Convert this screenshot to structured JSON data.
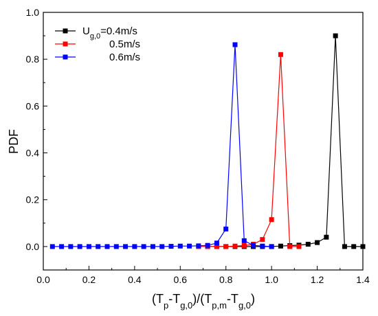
{
  "chart_data": {
    "type": "line",
    "title": "",
    "ylabel": "PDF",
    "xlabel": {
      "parts": [
        {
          "t": "(T"
        },
        {
          "t": "p",
          "sub": true
        },
        {
          "t": "-T"
        },
        {
          "t": "g,0",
          "sub": true
        },
        {
          "t": ")/(T"
        },
        {
          "t": "p,m",
          "sub": true
        },
        {
          "t": "-T"
        },
        {
          "t": "g,0",
          "sub": true
        },
        {
          "t": ")"
        }
      ]
    },
    "xlim": [
      0.0,
      1.4
    ],
    "ylim": [
      -0.1,
      1.0
    ],
    "xticks": [
      "0.0",
      "0.2",
      "0.4",
      "0.6",
      "0.8",
      "1.0",
      "1.2",
      "1.4"
    ],
    "yticks": [
      "0.0",
      "0.2",
      "0.4",
      "0.6",
      "0.8",
      "1.0"
    ],
    "grid": false,
    "legend_position": "top-left",
    "series": [
      {
        "name": "U_g,0=0.4m/s",
        "label_parts": [
          {
            "t": "U"
          },
          {
            "t": "g,0",
            "sub": true
          },
          {
            "t": "=0.4m/s"
          }
        ],
        "color": "#000000",
        "x": [
          0.72,
          0.76,
          0.8,
          0.84,
          0.88,
          0.92,
          0.96,
          1.0,
          1.04,
          1.08,
          1.12,
          1.16,
          1.2,
          1.24,
          1.28,
          1.32,
          1.36,
          1.4
        ],
        "y": [
          0.0,
          0.0,
          0.0,
          0.0,
          0.0,
          0.0,
          0.0,
          0.0,
          0.002,
          0.004,
          0.006,
          0.01,
          0.017,
          0.04,
          0.9,
          0.0,
          0.0,
          0.0
        ]
      },
      {
        "name": "0.5m/s",
        "label_parts": [
          {
            "t": "0.5m/s"
          }
        ],
        "color": "#ff0000",
        "x": [
          0.68,
          0.72,
          0.76,
          0.8,
          0.84,
          0.88,
          0.92,
          0.96,
          1.0,
          1.04,
          1.08,
          1.12
        ],
        "y": [
          0.0,
          0.0,
          0.0,
          0.0,
          0.002,
          0.004,
          0.01,
          0.03,
          0.115,
          0.82,
          0.0,
          0.0
        ]
      },
      {
        "name": "0.6m/s",
        "label_parts": [
          {
            "t": "0.6m/s"
          }
        ],
        "color": "#0000ff",
        "x": [
          0.04,
          0.08,
          0.12,
          0.16,
          0.2,
          0.24,
          0.28,
          0.32,
          0.36,
          0.4,
          0.44,
          0.48,
          0.52,
          0.56,
          0.6,
          0.64,
          0.68,
          0.72,
          0.76,
          0.8,
          0.84,
          0.88,
          0.92,
          0.96,
          1.0
        ],
        "y": [
          0.0,
          0.0,
          0.0,
          0.0,
          0.0,
          0.0,
          0.0,
          0.0,
          0.0,
          0.0,
          0.0,
          0.0,
          0.0,
          0.001,
          0.002,
          0.002,
          0.003,
          0.005,
          0.015,
          0.075,
          0.862,
          0.025,
          0.005,
          0.002,
          0.0
        ]
      }
    ]
  }
}
